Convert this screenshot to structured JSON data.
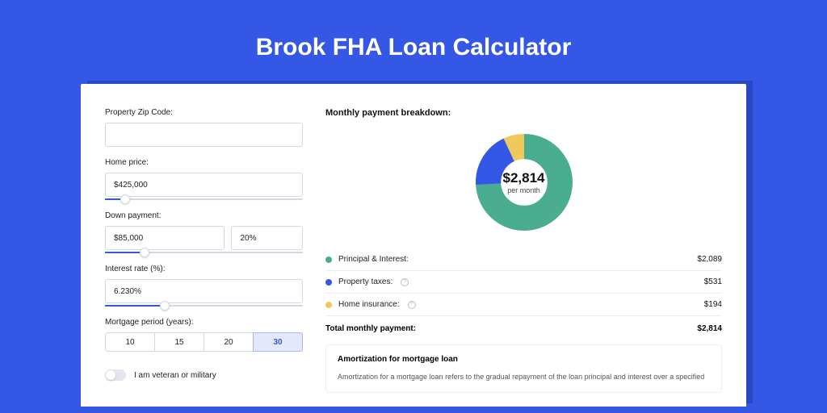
{
  "page_title": "Brook FHA Loan Calculator",
  "colors": {
    "page_bg": "#3457e5",
    "card_bg": "#ffffff",
    "border": "#d3d8e2",
    "selected_bg": "#e3e9fb"
  },
  "form": {
    "zip": {
      "label": "Property Zip Code:",
      "value": ""
    },
    "home_price": {
      "label": "Home price:",
      "value": "$425,000",
      "slider_pct": 10
    },
    "down_payment": {
      "label": "Down payment:",
      "value": "$85,000",
      "pct": "20%",
      "slider_pct": 20
    },
    "interest_rate": {
      "label": "Interest rate (%):",
      "value": "6.230%",
      "slider_pct": 30
    },
    "mortgage_period": {
      "label": "Mortgage period (years):",
      "options": [
        "10",
        "15",
        "20",
        "30"
      ],
      "selected": "30"
    },
    "veteran": {
      "label": "I am veteran or military",
      "checked": false
    }
  },
  "breakdown": {
    "title": "Monthly payment breakdown:",
    "chart": {
      "type": "donut",
      "center_value": "$2,814",
      "center_sub": "per month",
      "slices": [
        {
          "label": "Principal & Interest",
          "value": 2089,
          "color": "#4bad8f",
          "degrees": 267
        },
        {
          "label": "Property taxes",
          "value": 531,
          "color": "#3457e5",
          "degrees": 68
        },
        {
          "label": "Home insurance",
          "value": 194,
          "color": "#efc95b",
          "degrees": 25
        }
      ],
      "ring_thickness_pct": 26,
      "bg": "#ffffff"
    },
    "rows": [
      {
        "label": "Principal & Interest:",
        "value": "$2,089",
        "swatch": "#4bad8f",
        "info": false
      },
      {
        "label": "Property taxes:",
        "value": "$531",
        "swatch": "#3457e5",
        "info": true
      },
      {
        "label": "Home insurance:",
        "value": "$194",
        "swatch": "#efc95b",
        "info": true
      }
    ],
    "total": {
      "label": "Total monthly payment:",
      "value": "$2,814"
    }
  },
  "amortization": {
    "title": "Amortization for mortgage loan",
    "body": "Amortization for a mortgage loan refers to the gradual repayment of the loan principal and interest over a specified"
  }
}
